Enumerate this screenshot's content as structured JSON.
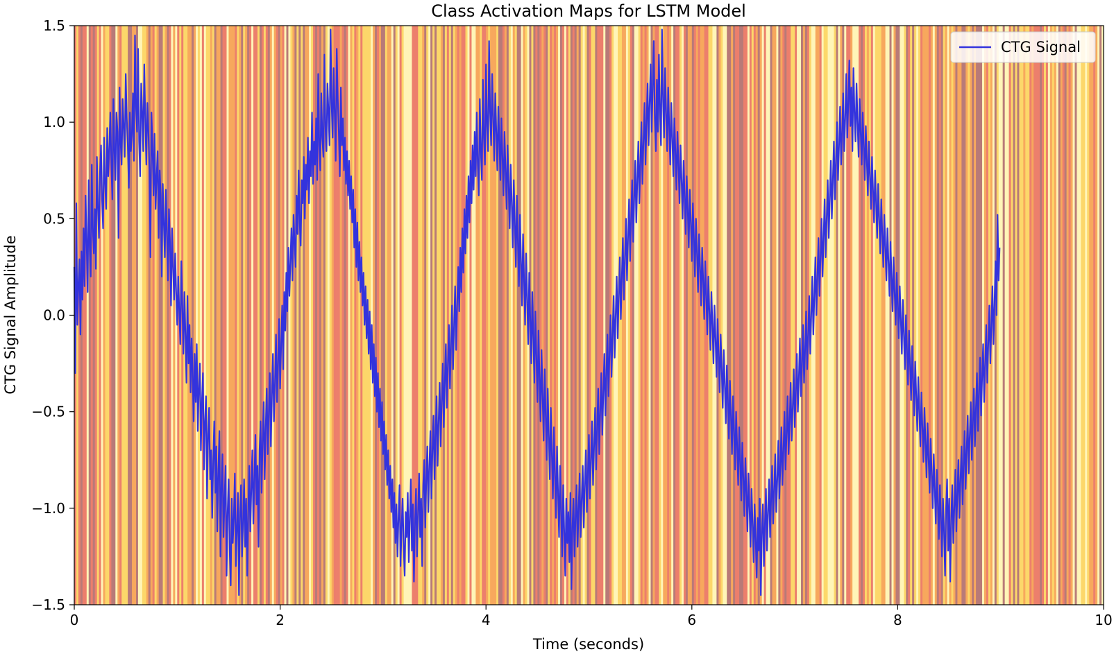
{
  "chart_data": {
    "type": "line",
    "title": "Class Activation Maps for LSTM Model",
    "xlabel": "Time (seconds)",
    "ylabel": "CTG Signal Amplitude",
    "xlim": [
      0,
      10
    ],
    "ylim": [
      -1.5,
      1.5
    ],
    "x_ticks": [
      0,
      2,
      4,
      6,
      8,
      10
    ],
    "x_tick_labels": [
      "0",
      "2",
      "4",
      "6",
      "8",
      "10"
    ],
    "y_ticks": [
      -1.5,
      -1.0,
      -0.5,
      0.0,
      0.5,
      1.0,
      1.5
    ],
    "y_tick_labels": [
      "−1.5",
      "−1.0",
      "−0.5",
      "0.0",
      "0.5",
      "1.0",
      "1.5"
    ],
    "grid": false,
    "legend": {
      "placement": "top-right"
    },
    "background_heatmap": {
      "description": "class activation values shown as vertical bands across time",
      "colormap": [
        "#fff5b8",
        "#fcd76a",
        "#f7a85d",
        "#ec7f6c",
        "#b87a78"
      ]
    },
    "series": [
      {
        "name": "CTG Signal",
        "color": "#3333dd",
        "x_start": 0,
        "x_step": 0.01,
        "y": [
          0.25,
          -0.3,
          0.58,
          -0.05,
          0.15,
          0.29,
          -0.1,
          0.33,
          0.08,
          0.45,
          0.15,
          0.62,
          0.38,
          0.12,
          0.7,
          0.35,
          0.2,
          0.78,
          0.45,
          0.32,
          0.55,
          0.24,
          0.82,
          0.56,
          0.4,
          0.74,
          0.88,
          0.6,
          0.45,
          0.92,
          0.68,
          0.55,
          0.97,
          0.72,
          0.86,
          1.05,
          0.78,
          0.6,
          1.12,
          0.85,
          0.7,
          1.05,
          0.95,
          0.4,
          1.18,
          0.9,
          0.78,
          1.12,
          0.98,
          0.82,
          1.25,
          1.02,
          0.88,
          0.66,
          1.05,
          0.85,
          0.94,
          1.15,
          0.8,
          1.45,
          1.08,
          0.95,
          1.38,
          0.9,
          0.72,
          1.2,
          1.05,
          0.85,
          1.3,
          1.02,
          0.78,
          1.1,
          0.96,
          0.75,
          0.3,
          1.05,
          0.88,
          0.62,
          0.94,
          0.55,
          0.72,
          0.85,
          0.4,
          0.75,
          0.62,
          0.2,
          0.68,
          0.48,
          0.3,
          0.65,
          0.42,
          0.18,
          0.55,
          0.38,
          0.05,
          0.45,
          0.25,
          0.08,
          0.32,
          0.12,
          -0.05,
          0.2,
          0.02,
          -0.15,
          0.28,
          0.05,
          -0.2,
          0.12,
          -0.1,
          -0.35,
          0.1,
          -0.25,
          -0.05,
          -0.4,
          -0.12,
          -0.3,
          -0.55,
          -0.2,
          -0.45,
          -0.15,
          -0.6,
          -0.38,
          -0.25,
          -0.7,
          -0.45,
          -0.3,
          -0.8,
          -0.55,
          -0.42,
          -0.95,
          -0.62,
          -0.48,
          -0.85,
          -0.7,
          -1.05,
          -0.75,
          -0.55,
          -0.92,
          -0.68,
          -1.12,
          -0.8,
          -0.6,
          -1.25,
          -0.88,
          -0.72,
          -1.15,
          -0.95,
          -0.78,
          -1.35,
          -1.02,
          -0.85,
          -1.22,
          -1.4,
          -0.95,
          -1.18,
          -1.05,
          -0.82,
          -1.3,
          -1.1,
          -0.92,
          -1.45,
          -1.02,
          -0.88,
          -1.25,
          -1.08,
          -0.85,
          -1.2,
          -0.95,
          -1.35,
          -1.02,
          -0.78,
          -1.12,
          -0.9,
          -0.7,
          -1.08,
          -0.85,
          -0.62,
          -0.98,
          -0.78,
          -1.2,
          -0.7,
          -0.55,
          -0.92,
          -0.65,
          -0.45,
          -0.85,
          -0.58,
          -0.38,
          -0.72,
          -0.5,
          -0.3,
          -0.68,
          -0.42,
          -0.2,
          -0.55,
          -0.35,
          -0.1,
          -0.45,
          -0.25,
          -0.02,
          -0.38,
          -0.15,
          0.05,
          -0.28,
          0.12,
          -0.08,
          0.22,
          0.02,
          0.35,
          0.1,
          0.28,
          0.45,
          0.18,
          0.52,
          0.38,
          0.25,
          0.62,
          0.42,
          0.75,
          0.48,
          0.36,
          0.7,
          0.58,
          0.82,
          0.5,
          0.78,
          0.65,
          0.92,
          0.58,
          0.85,
          0.72,
          1.05,
          0.68,
          0.9,
          0.78,
          1.02,
          0.7,
          1.25,
          0.88,
          0.75,
          1.15,
          0.92,
          0.82,
          1.35,
          0.98,
          0.85,
          1.2,
          1.05,
          0.88,
          1.48,
          1.1,
          0.92,
          1.28,
          1.05,
          0.8,
          1.38,
          1.12,
          0.95,
          0.72,
          1.18,
          0.88,
          1.02,
          0.75,
          0.92,
          0.68,
          0.85,
          0.62,
          0.8,
          0.55,
          0.72,
          0.48,
          0.65,
          0.35,
          0.55,
          0.25,
          0.48,
          0.18,
          0.38,
          0.12,
          0.3,
          0.05,
          0.22,
          -0.05,
          0.15,
          -0.12,
          0.08,
          -0.2,
          0.02,
          -0.28,
          -0.05,
          -0.35,
          -0.15,
          -0.42,
          -0.22,
          -0.5,
          -0.3,
          -0.58,
          -0.38,
          -0.65,
          -0.45,
          -0.72,
          -0.55,
          -0.8,
          -0.62,
          -0.88,
          -0.7,
          -0.95,
          -0.78,
          -1.02,
          -0.85,
          -1.1,
          -0.92,
          -1.18,
          -0.98,
          -1.25,
          -1.05,
          -0.88,
          -1.3,
          -1.1,
          -0.95,
          -1.2,
          -1.35,
          -1.02,
          -1.15,
          -0.92,
          -1.28,
          -1.05,
          -0.85,
          -1.22,
          -0.98,
          -1.38,
          -1.08,
          -0.9,
          -1.25,
          -1.02,
          -0.82,
          -1.15,
          -0.95,
          -1.3,
          -0.88,
          -0.75,
          -1.1,
          -0.85,
          -0.68,
          -1.02,
          -0.78,
          -0.6,
          -0.95,
          -0.7,
          -0.52,
          -0.85,
          -0.62,
          -0.42,
          -0.78,
          -0.55,
          -0.35,
          -0.68,
          -0.45,
          -0.25,
          -0.58,
          -0.35,
          -0.15,
          -0.48,
          -0.25,
          -0.05,
          -0.38,
          -0.15,
          0.05,
          -0.28,
          -0.05,
          0.15,
          -0.18,
          0.05,
          0.25,
          0.02,
          0.35,
          0.12,
          0.45,
          0.22,
          0.55,
          0.32,
          0.62,
          0.4,
          0.72,
          0.48,
          0.8,
          0.58,
          0.88,
          0.65,
          0.95,
          0.72,
          1.05,
          0.78,
          0.62,
          1.12,
          0.85,
          0.7,
          1.22,
          0.92,
          0.78,
          1.3,
          0.98,
          0.85,
          1.42,
          1.05,
          0.88,
          1.25,
          1.02,
          0.8,
          1.15,
          0.95,
          0.75,
          1.08,
          0.9,
          0.7,
          1.02,
          0.82,
          0.62,
          0.95,
          0.75,
          0.55,
          0.88,
          0.68,
          0.45,
          0.78,
          0.58,
          0.35,
          0.7,
          0.48,
          0.25,
          0.62,
          0.38,
          0.15,
          0.52,
          0.28,
          0.05,
          0.42,
          0.18,
          -0.05,
          0.32,
          0.08,
          -0.15,
          0.22,
          -0.02,
          -0.25,
          0.12,
          -0.12,
          -0.35,
          0.02,
          -0.22,
          -0.45,
          -0.08,
          -0.32,
          -0.55,
          -0.18,
          -0.42,
          -0.65,
          -0.28,
          -0.52,
          -0.75,
          -0.38,
          -0.62,
          -0.85,
          -0.48,
          -0.72,
          -0.95,
          -0.58,
          -0.82,
          -1.05,
          -0.68,
          -0.92,
          -1.15,
          -0.78,
          -1.02,
          -1.25,
          -0.88,
          -1.12,
          -1.35,
          -0.95,
          -1.18,
          -1.02,
          -1.28,
          -0.92,
          -1.42,
          -1.1,
          -0.95,
          -1.25,
          -1.05,
          -0.88,
          -1.2,
          -1.0,
          -0.82,
          -1.15,
          -0.95,
          -0.78,
          -1.1,
          -0.88,
          -0.7,
          -1.02,
          -0.82,
          -0.62,
          -0.95,
          -0.75,
          -0.55,
          -0.88,
          -0.68,
          -0.48,
          -0.8,
          -0.58,
          -0.38,
          -0.72,
          -0.5,
          -0.3,
          -0.62,
          -0.4,
          -0.2,
          -0.52,
          -0.3,
          -0.1,
          -0.42,
          -0.2,
          0.0,
          -0.32,
          -0.1,
          0.1,
          -0.22,
          0.0,
          0.2,
          -0.12,
          0.1,
          0.3,
          -0.02,
          0.2,
          0.4,
          0.08,
          0.3,
          0.5,
          0.18,
          0.4,
          0.6,
          0.28,
          0.5,
          0.7,
          0.38,
          0.6,
          0.8,
          0.48,
          0.7,
          0.9,
          0.58,
          0.8,
          1.0,
          0.68,
          0.9,
          1.1,
          0.78,
          1.0,
          1.2,
          0.88,
          1.1,
          1.3,
          0.95,
          1.18,
          1.42,
          1.02,
          0.85,
          1.22,
          0.95,
          1.35,
          1.05,
          0.88,
          1.48,
          1.12,
          0.92,
          1.28,
          1.05,
          0.85,
          1.18,
          0.98,
          0.78,
          1.1,
          0.92,
          0.72,
          1.02,
          0.85,
          0.65,
          0.95,
          0.78,
          0.58,
          0.88,
          0.7,
          0.5,
          0.8,
          0.62,
          0.42,
          0.72,
          0.55,
          0.35,
          0.65,
          0.48,
          0.28,
          0.58,
          0.4,
          0.2,
          0.5,
          0.32,
          0.12,
          0.42,
          0.25,
          0.05,
          0.35,
          0.18,
          -0.02,
          0.28,
          0.1,
          -0.1,
          0.2,
          0.02,
          -0.18,
          0.12,
          -0.05,
          -0.25,
          0.05,
          -0.12,
          -0.32,
          -0.02,
          -0.2,
          -0.4,
          -0.1,
          -0.28,
          -0.48,
          -0.18,
          -0.36,
          -0.56,
          -0.26,
          -0.44,
          -0.64,
          -0.34,
          -0.52,
          -0.72,
          -0.42,
          -0.6,
          -0.8,
          -0.5,
          -0.68,
          -0.88,
          -0.58,
          -0.76,
          -0.96,
          -0.66,
          -0.84,
          -1.04,
          -0.74,
          -0.92,
          -1.12,
          -0.82,
          -1.0,
          -1.2,
          -0.9,
          -1.08,
          -1.28,
          -0.98,
          -1.16,
          -1.36,
          -1.05,
          -1.22,
          -0.95,
          -1.45,
          -1.12,
          -0.98,
          -1.3,
          -1.08,
          -0.9,
          -1.22,
          -1.02,
          -0.85,
          -1.15,
          -0.95,
          -0.78,
          -1.08,
          -0.9,
          -0.72,
          -1.02,
          -0.85,
          -0.65,
          -0.95,
          -0.78,
          -0.58,
          -0.88,
          -0.7,
          -0.5,
          -0.8,
          -0.62,
          -0.42,
          -0.72,
          -0.55,
          -0.35,
          -0.65,
          -0.48,
          -0.28,
          -0.58,
          -0.4,
          -0.2,
          -0.5,
          -0.32,
          -0.12,
          -0.42,
          -0.25,
          -0.05,
          -0.35,
          -0.18,
          0.02,
          -0.28,
          -0.1,
          0.1,
          -0.2,
          0.0,
          0.2,
          -0.1,
          0.1,
          0.3,
          0.0,
          0.2,
          0.4,
          0.1,
          0.3,
          0.5,
          0.2,
          0.4,
          0.6,
          0.3,
          0.5,
          0.7,
          0.4,
          0.6,
          0.8,
          0.5,
          0.7,
          0.9,
          0.6,
          0.8,
          1.0,
          0.7,
          0.88,
          1.08,
          0.78,
          0.95,
          1.15,
          0.85,
          1.02,
          1.25,
          0.92,
          1.1,
          1.32,
          0.98,
          1.18,
          0.85,
          1.28,
          1.05,
          0.9,
          1.2,
          1.0,
          0.82,
          1.12,
          0.95,
          0.78,
          1.05,
          0.88,
          0.7,
          0.98,
          0.8,
          0.62,
          0.9,
          0.72,
          0.55,
          0.82,
          0.65,
          0.48,
          0.75,
          0.58,
          0.4,
          0.68,
          0.5,
          0.32,
          0.6,
          0.42,
          0.25,
          0.52,
          0.35,
          0.18,
          0.45,
          0.28,
          0.1,
          0.38,
          0.2,
          0.02,
          0.3,
          0.12,
          -0.05,
          0.22,
          0.05,
          -0.12,
          0.15,
          -0.02,
          -0.2,
          0.08,
          -0.1,
          -0.28,
          0.0,
          -0.18,
          -0.36,
          -0.08,
          -0.26,
          -0.44,
          -0.16,
          -0.34,
          -0.52,
          -0.24,
          -0.42,
          -0.6,
          -0.32,
          -0.5,
          -0.68,
          -0.4,
          -0.58,
          -0.76,
          -0.48,
          -0.66,
          -0.84,
          -0.56,
          -0.74,
          -0.92,
          -0.64,
          -0.82,
          -1.0,
          -0.72,
          -0.9,
          -1.08,
          -0.8,
          -0.98,
          -1.16,
          -0.88,
          -1.05,
          -1.25,
          -0.95,
          -1.12,
          -1.35,
          -1.0,
          -0.85,
          -1.22,
          -0.95,
          -1.38,
          -1.05,
          -0.88,
          -1.18,
          -1.0,
          -0.8,
          -1.12,
          -0.92,
          -0.75,
          -1.05,
          -0.85,
          -0.68,
          -0.98,
          -0.78,
          -0.6,
          -0.9,
          -0.7,
          -0.52,
          -0.82,
          -0.62,
          -0.45,
          -0.75,
          -0.55,
          -0.38,
          -0.68,
          -0.48,
          -0.3,
          -0.6,
          -0.4,
          -0.22,
          -0.52,
          -0.32,
          -0.15,
          -0.45,
          -0.25,
          -0.05,
          -0.35,
          -0.15,
          0.05,
          -0.25,
          -0.05,
          0.15,
          -0.15,
          0.05,
          0.28,
          0.0,
          0.52,
          0.18,
          0.35
        ]
      }
    ]
  }
}
